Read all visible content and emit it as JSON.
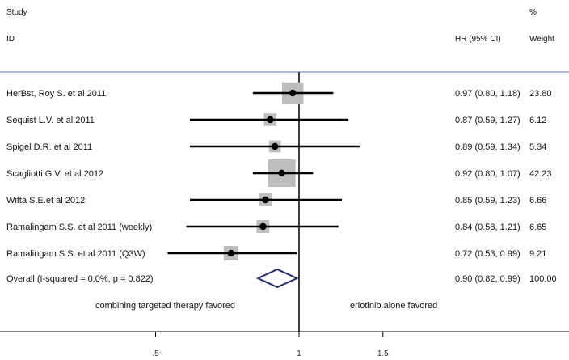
{
  "header": {
    "study": "Study",
    "id": "ID",
    "percent": "%",
    "hr": "HR (95% CI)",
    "weight": "Weight"
  },
  "chart_data": {
    "type": "forest",
    "xscale": "log",
    "null_line": 1,
    "xticks": [
      ".5",
      "1",
      "1.5"
    ],
    "xtick_values": [
      0.5,
      1,
      1.5
    ],
    "studies": [
      {
        "label": "HerBst, Roy S. et al 2011",
        "hr": 0.97,
        "lo": 0.8,
        "hi": 1.18,
        "ci_text": "0.97 (0.80, 1.18)",
        "weight": 23.8,
        "weight_text": "23.80"
      },
      {
        "label": "Sequist L.V. et al.2011",
        "hr": 0.87,
        "lo": 0.59,
        "hi": 1.27,
        "ci_text": "0.87 (0.59, 1.27)",
        "weight": 6.12,
        "weight_text": "6.12"
      },
      {
        "label": "Spigel D.R. et al 2011",
        "hr": 0.89,
        "lo": 0.59,
        "hi": 1.34,
        "ci_text": "0.89 (0.59, 1.34)",
        "weight": 5.34,
        "weight_text": "5.34"
      },
      {
        "label": "Scagliotti G.V. et al 2012",
        "hr": 0.92,
        "lo": 0.8,
        "hi": 1.07,
        "ci_text": "0.92 (0.80, 1.07)",
        "weight": 42.23,
        "weight_text": "42.23"
      },
      {
        "label": "Witta S.E.et al 2012",
        "hr": 0.85,
        "lo": 0.59,
        "hi": 1.23,
        "ci_text": "0.85 (0.59, 1.23)",
        "weight": 6.66,
        "weight_text": "6.66"
      },
      {
        "label": "Ramalingam S.S. et al 2011 (weekly)",
        "hr": 0.84,
        "lo": 0.58,
        "hi": 1.21,
        "ci_text": "0.84 (0.58, 1.21)",
        "weight": 6.65,
        "weight_text": "6.65"
      },
      {
        "label": "Ramalingam S.S. et al 2011 (Q3W)",
        "hr": 0.72,
        "lo": 0.53,
        "hi": 0.99,
        "ci_text": "0.72 (0.53, 0.99)",
        "weight": 9.21,
        "weight_text": "9.21"
      }
    ],
    "overall": {
      "label": "Overall  (I-squared = 0.0%, p = 0.822)",
      "hr": 0.9,
      "lo": 0.82,
      "hi": 0.99,
      "ci_text": "0.90 (0.82, 0.99)",
      "weight_text": "100.00"
    },
    "favors_left": "combining targeted therapy favored",
    "favors_right": "erlotinib alone favored",
    "colors": {
      "box": "#bdbdbd",
      "line": "#000000",
      "diamond": "#1f2a6b",
      "separator": "#9aa0c8"
    }
  }
}
